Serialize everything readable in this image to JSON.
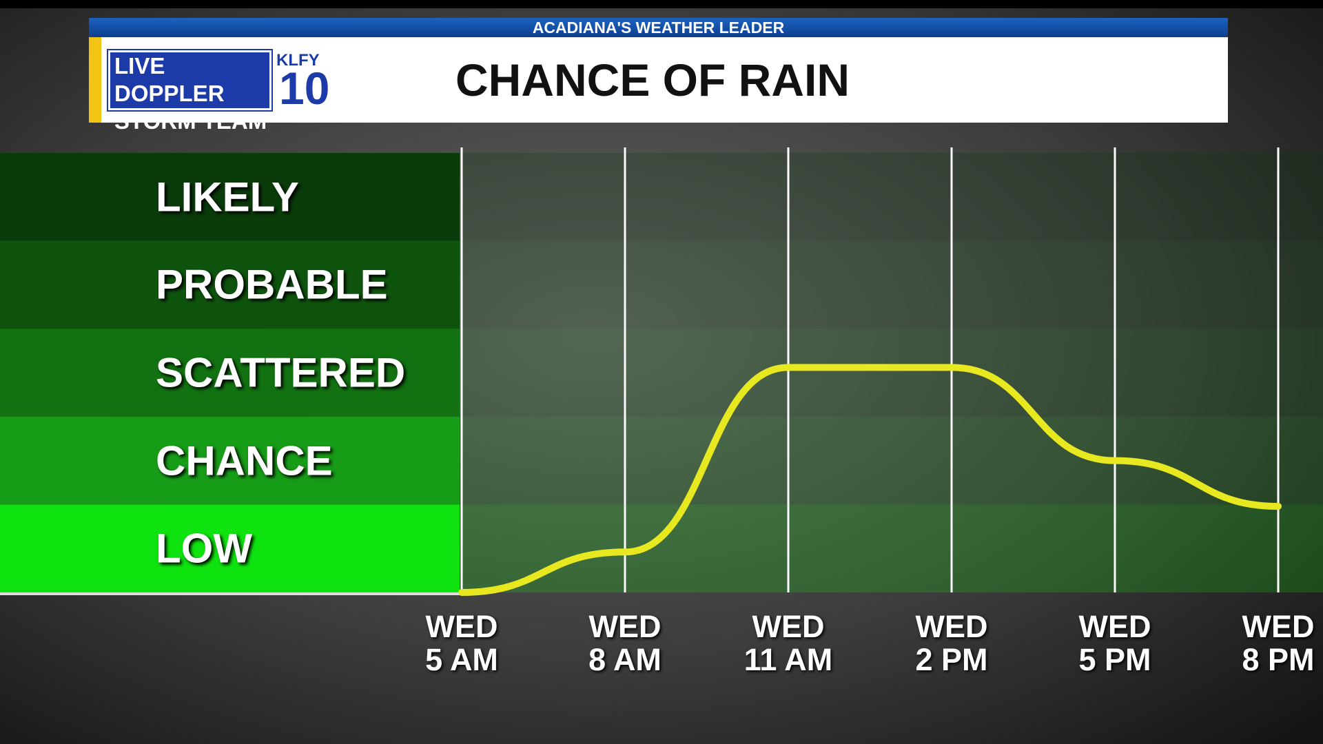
{
  "header": {
    "banner": "ACADIANA'S WEATHER LEADER",
    "logo_line1": "LIVE DOPPLER",
    "logo_line2": "STORM TEAM",
    "station": "KLFY",
    "channel": "10"
  },
  "chart_data": {
    "type": "line",
    "title": "CHANCE OF RAIN",
    "categories": [
      "WED\n5 AM",
      "WED\n8 AM",
      "WED\n11 AM",
      "WED\n2 PM",
      "WED\n5 PM",
      "WED\n8 PM"
    ],
    "series": [
      {
        "name": "Chance of rain",
        "color": "#e8e820",
        "values": [
          0,
          0.46,
          2.56,
          2.56,
          1.5,
          0.98
        ]
      }
    ],
    "ylim": [
      0,
      5
    ],
    "yticks": [
      {
        "value": 0.5,
        "label": "LOW"
      },
      {
        "value": 1.5,
        "label": "CHANCE"
      },
      {
        "value": 2.5,
        "label": "SCATTERED"
      },
      {
        "value": 3.5,
        "label": "PROBABLE"
      },
      {
        "value": 4.5,
        "label": "LIKELY"
      }
    ],
    "band_colors": [
      "#0fe30f",
      "#179c17",
      "#127212",
      "#0e540e",
      "#0a3b0a"
    ],
    "grid": true
  }
}
